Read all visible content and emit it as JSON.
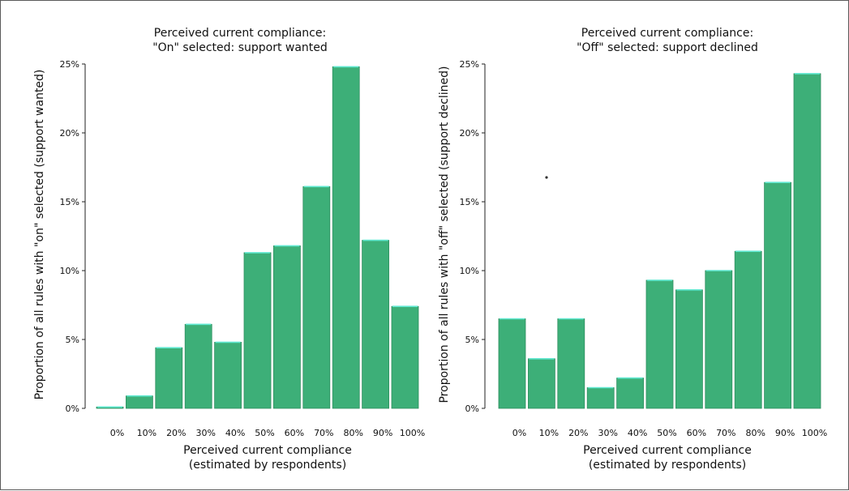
{
  "chart_data": [
    {
      "type": "bar",
      "title": [
        "Perceived current compliance:",
        "\"On\" selected: support wanted"
      ],
      "xlabel": [
        "Perceived current compliance",
        "(estimated by respondents)"
      ],
      "ylabel": "Proportion of all rules with \"on\" selected (support wanted)",
      "categories": [
        "0%",
        "10%",
        "20%",
        "30%",
        "40%",
        "50%",
        "60%",
        "70%",
        "80%",
        "90%",
        "100%"
      ],
      "values": [
        0.1,
        0.9,
        4.4,
        6.1,
        4.8,
        11.3,
        11.8,
        16.1,
        24.8,
        12.2,
        7.4
      ],
      "yticks": [
        "0%",
        "5%",
        "10%",
        "15%",
        "20%",
        "25%"
      ],
      "ylim": [
        0,
        25
      ],
      "color": "#3daf78"
    },
    {
      "type": "bar",
      "title": [
        "Perceived current compliance:",
        "\"Off\" selected: support declined"
      ],
      "xlabel": [
        "Perceived current compliance",
        "(estimated by respondents)"
      ],
      "ylabel": "Proportion of all rules with \"off\" selected (support declined)",
      "categories": [
        "0%",
        "10%",
        "20%",
        "30%",
        "40%",
        "50%",
        "60%",
        "70%",
        "80%",
        "90%",
        "100%"
      ],
      "values": [
        6.5,
        3.6,
        6.5,
        1.5,
        2.2,
        9.3,
        8.6,
        10.0,
        11.4,
        16.4,
        24.3
      ],
      "yticks": [
        "0%",
        "5%",
        "10%",
        "15%",
        "20%",
        "25%"
      ],
      "ylim": [
        0,
        25
      ],
      "color": "#3daf78"
    }
  ]
}
